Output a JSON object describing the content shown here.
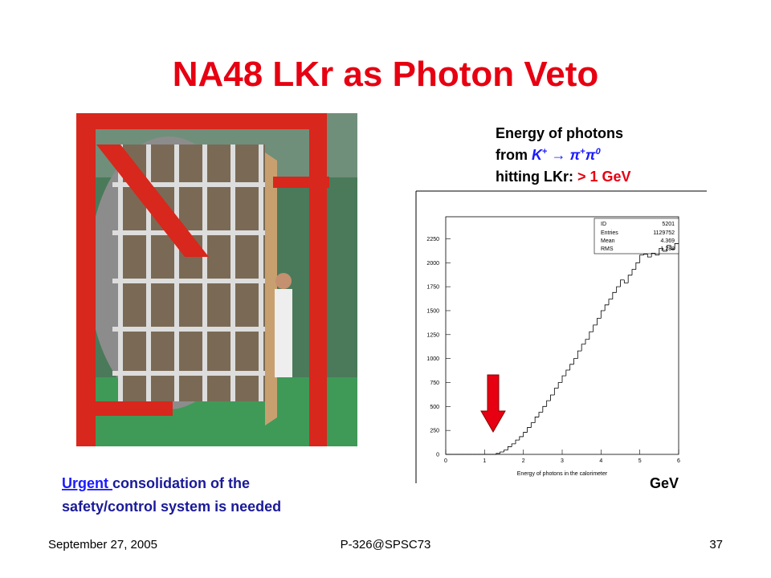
{
  "slide": {
    "title": "NA48 LKr as Photon Veto",
    "caption": {
      "line1": "Energy of photons",
      "from": "from",
      "k": "K",
      "k_sup": "+",
      "arrow": "→",
      "pi1": "π",
      "pi1_sup": "+",
      "pi2": "π",
      "pi2_sup": "0",
      "hitting": "hitting LKr:",
      "threshold": "> 1 GeV"
    },
    "unit": "GeV",
    "note": {
      "urgent": "Urgent ",
      "rest1": "consolidation of the",
      "line2": "safety/control system is needed"
    },
    "footer": {
      "date": "September 27, 2005",
      "id": "P-326@SPSC73",
      "page": "37"
    },
    "stats": {
      "id_label": "ID",
      "id": "5201",
      "entries_label": "Entries",
      "entries": "1129752",
      "mean_label": "Mean",
      "mean": "4.369",
      "rms_label": "RMS",
      "rms": "1.288"
    }
  },
  "chart_data": {
    "type": "histogram",
    "x_label": "Energy of photons in the calorimeter",
    "bins": [
      0,
      0.1,
      0.2,
      0.3,
      0.4,
      0.5,
      0.6,
      0.7,
      0.8,
      0.9,
      1.0,
      1.1,
      1.2,
      1.3,
      1.4,
      1.5,
      1.6,
      1.7,
      1.8,
      1.9,
      2.0,
      2.1,
      2.2,
      2.3,
      2.4,
      2.5,
      2.6,
      2.7,
      2.8,
      2.9,
      3.0,
      3.1,
      3.2,
      3.3,
      3.4,
      3.5,
      3.6,
      3.7,
      3.8,
      3.9,
      4.0,
      4.1,
      4.2,
      4.3,
      4.4,
      4.5,
      4.6,
      4.7,
      4.8,
      4.9,
      5.0,
      5.1,
      5.2,
      5.3,
      5.4,
      5.5,
      5.6,
      5.7,
      5.8,
      5.9,
      6.0
    ],
    "values": [
      0,
      0,
      0,
      0,
      0,
      0,
      0,
      0,
      0,
      0,
      0,
      0,
      0,
      10,
      25,
      45,
      80,
      110,
      150,
      185,
      230,
      280,
      330,
      390,
      440,
      500,
      560,
      620,
      690,
      750,
      820,
      880,
      940,
      1000,
      1080,
      1150,
      1200,
      1280,
      1350,
      1420,
      1500,
      1560,
      1620,
      1690,
      1750,
      1820,
      1790,
      1870,
      1930,
      2000,
      2080,
      2090,
      2060,
      2100,
      2080,
      2150,
      2120,
      2180,
      2140,
      2200
    ],
    "color": "#000000",
    "xlim": [
      0,
      6
    ],
    "xticks": [
      0,
      1,
      2,
      3,
      4,
      5,
      6
    ],
    "ylim": [
      0,
      2480
    ],
    "yticks": [
      0,
      250,
      500,
      750,
      1000,
      1250,
      1500,
      1750,
      2000,
      2250
    ]
  }
}
